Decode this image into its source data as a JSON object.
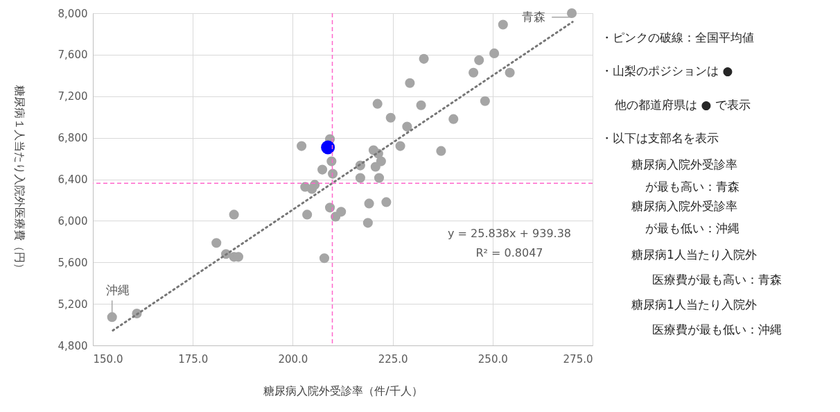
{
  "chart_data": {
    "type": "scatter",
    "xlabel": "糖尿病入院外受診率（件/千人）",
    "ylabel": "糖尿病１人当たり入院外医療費（円）",
    "xlim": [
      150,
      275
    ],
    "xticks": [
      {
        "value": 150,
        "label": "150.0"
      },
      {
        "value": 175,
        "label": "175.0"
      },
      {
        "value": 200,
        "label": "200.0"
      },
      {
        "value": 225,
        "label": "225.0"
      },
      {
        "value": 250,
        "label": "250.0"
      },
      {
        "value": 275,
        "label": "275.0"
      }
    ],
    "ylim": [
      4800,
      8000
    ],
    "yticks": [
      {
        "value": 4800,
        "label": "4,800"
      },
      {
        "value": 5200,
        "label": "5,200"
      },
      {
        "value": 5600,
        "label": "5,600"
      },
      {
        "value": 6000,
        "label": "6,000"
      },
      {
        "value": 6400,
        "label": "6,400"
      },
      {
        "value": 6800,
        "label": "6,800"
      },
      {
        "value": 7200,
        "label": "7,200"
      },
      {
        "value": 7600,
        "label": "7,600"
      },
      {
        "value": 8000,
        "label": "8,000"
      }
    ],
    "grid": true,
    "marker": "circle",
    "series": [
      {
        "color": "#a5a5a5",
        "x": [
          269.8,
          252.6,
          250.4,
          246.6,
          232.8,
          254.3,
          245.2,
          229.3,
          232.1,
          248.1,
          221.2,
          224.5,
          240.2,
          228.6,
          209.3,
          202.2,
          226.9,
          237.1,
          220.2,
          221.4,
          209.7,
          222.1,
          220.7,
          216.9,
          207.4,
          210.0,
          216.9,
          221.6,
          203.1,
          204.8,
          205.5,
          209.3,
          210.7,
          203.6,
          207.9,
          185.3,
          180.9,
          183.3,
          185.3,
          186.4,
          154.8,
          161.0,
          212.1,
          219.1,
          223.4,
          218.8
        ],
        "values": [
          8000,
          7890,
          7613,
          7547,
          7560,
          7427,
          7427,
          7327,
          7113,
          7153,
          7127,
          6993,
          6980,
          6907,
          6787,
          6720,
          6720,
          6673,
          6680,
          6647,
          6573,
          6573,
          6520,
          6533,
          6493,
          6453,
          6413,
          6413,
          6327,
          6307,
          6347,
          6127,
          6040,
          6060,
          5640,
          6060,
          5787,
          5680,
          5653,
          5653,
          5073,
          5107,
          6087,
          6167,
          6180,
          5980
        ]
      },
      {
        "color": "#0000ff",
        "x": [
          208.8
        ],
        "values": [
          6707
        ]
      },
      {
        "type": "line",
        "color": "#767676",
        "line_style": "dotted",
        "marker": "none",
        "x": [
          155,
          270
        ],
        "values": [
          4944,
          7916
        ]
      }
    ],
    "ref_lines": [
      {
        "axis": "x",
        "value": 209.9,
        "color": "#ff66cc",
        "line_style": "dashed"
      },
      {
        "axis": "y",
        "value": 6362,
        "color": "#ff66cc",
        "line_style": "dashed"
      }
    ],
    "annotations": [
      {
        "text": "青森",
        "x": 269.8,
        "y": 8000
      },
      {
        "text": "沖縄",
        "x": 154.8,
        "y": 5073
      },
      "y = 25.838x + 939.38",
      "R² = 0.8047",
      "・ピンクの破線：全国平均値",
      "・山梨のポジションは ●",
      "他の都道府県は ● で表示",
      "・以下は支部名を表示",
      "糖尿病入院外受診率",
      "が最も高い：青森",
      "糖尿病入院外受診率",
      "が最も低い：沖縄",
      "糖尿病1人当たり入院外",
      "医療費が最も高い：青森",
      "糖尿病1人当たり入院外",
      "医療費が最も低い：沖縄"
    ]
  }
}
